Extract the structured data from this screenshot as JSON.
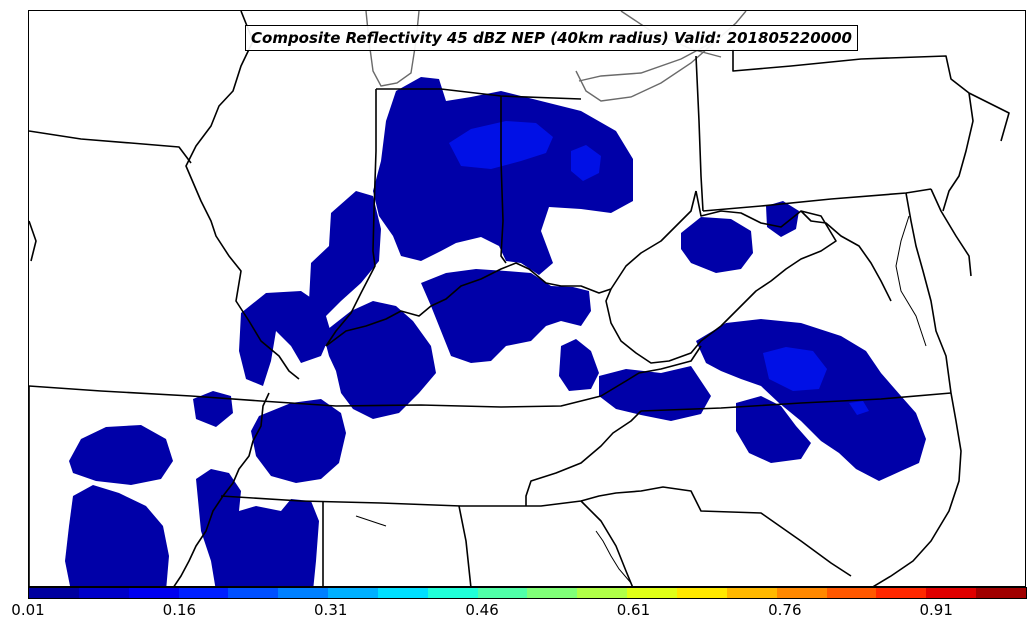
{
  "title": "Composite Reflectivity 45 dBZ NEP (40km radius) Valid: 201805220000",
  "colors": {
    "prob_low": "#0000a8",
    "prob_mid": "#0010e6",
    "border": "#000000",
    "lakes": "#6a6a6a"
  },
  "colorbar": {
    "min": 0.01,
    "max": 1.0,
    "colors": [
      "#00009f",
      "#0000c8",
      "#0000f0",
      "#0020ff",
      "#0050ff",
      "#0080ff",
      "#00b0ff",
      "#00e0ff",
      "#20ffd8",
      "#50ffa8",
      "#80ff78",
      "#b0ff48",
      "#e0ff18",
      "#ffe800",
      "#ffb800",
      "#ff8800",
      "#ff5800",
      "#ff2800",
      "#e00000",
      "#a00000"
    ],
    "ticks": [
      "0.01",
      "0.16",
      "0.31",
      "0.46",
      "0.61",
      "0.76",
      "0.91"
    ],
    "tick_values": [
      0.01,
      0.16,
      0.31,
      0.46,
      0.61,
      0.76,
      0.91
    ]
  }
}
